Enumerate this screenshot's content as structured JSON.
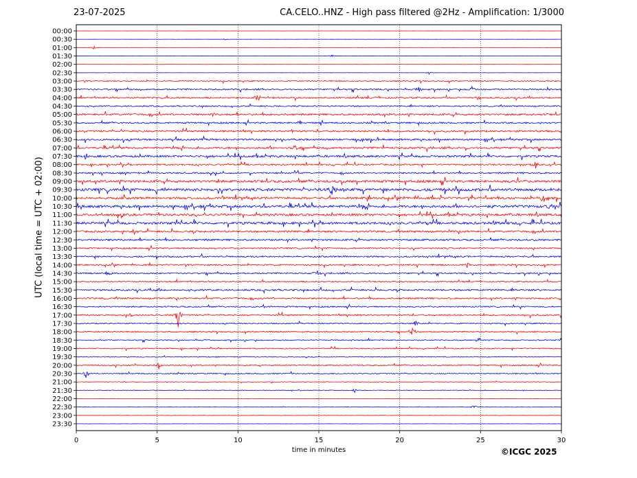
{
  "header": {
    "date": "23-07-2025",
    "title": "CA.CELO..HNZ - High pass filtered @2Hz - Amplification: 1/3000"
  },
  "footer": {
    "copyright": "©ICGC 2025"
  },
  "colors": {
    "trace_a": "#ff0000",
    "trace_b": "#0000ff",
    "grid": "#000000"
  },
  "chart_data": {
    "type": "line",
    "chart_kind": "helicorder",
    "xlabel": "time in minutes",
    "ylabel": "UTC (local time = UTC + 02:00)",
    "xlim": [
      0,
      30
    ],
    "x_ticks": [
      "0",
      "5",
      "10",
      "15",
      "20",
      "25",
      "30"
    ],
    "x_gridlines_at": [
      5,
      10,
      15,
      20,
      25
    ],
    "row_labels": [
      "00:00",
      "00:30",
      "01:00",
      "01:30",
      "02:00",
      "02:30",
      "03:00",
      "03:30",
      "04:00",
      "04:30",
      "05:00",
      "05:30",
      "06:00",
      "06:30",
      "07:00",
      "07:30",
      "08:00",
      "08:30",
      "09:00",
      "09:30",
      "10:00",
      "10:30",
      "11:00",
      "11:30",
      "12:00",
      "12:30",
      "13:00",
      "13:30",
      "14:00",
      "14:30",
      "15:00",
      "15:30",
      "16:00",
      "16:30",
      "17:00",
      "17:30",
      "18:00",
      "18:30",
      "19:00",
      "19:30",
      "20:00",
      "20:30",
      "21:00",
      "21:30",
      "22:00",
      "22:30",
      "23:00",
      "23:30"
    ],
    "row_colors": [
      "red",
      "blue",
      "red",
      "blue",
      "red",
      "blue",
      "red",
      "blue",
      "red",
      "blue",
      "red",
      "blue",
      "red",
      "blue",
      "red",
      "blue",
      "red",
      "blue",
      "red",
      "blue",
      "red",
      "blue",
      "red",
      "blue",
      "red",
      "blue",
      "red",
      "blue",
      "red",
      "blue",
      "red",
      "blue",
      "red",
      "blue",
      "red",
      "blue",
      "red",
      "blue",
      "red",
      "blue",
      "red",
      "blue",
      "red",
      "blue",
      "red",
      "blue",
      "red",
      "blue"
    ],
    "row_noise_level": [
      0.1,
      0.1,
      0.15,
      0.15,
      0.15,
      0.15,
      1.0,
      1.2,
      1.3,
      1.1,
      1.6,
      1.3,
      1.5,
      1.5,
      1.6,
      1.7,
      1.3,
      1.3,
      2.0,
      2.3,
      1.8,
      2.1,
      1.9,
      2.0,
      1.6,
      1.5,
      1.2,
      1.3,
      1.2,
      1.2,
      1.1,
      1.4,
      1.3,
      1.1,
      1.2,
      1.0,
      1.0,
      0.9,
      0.9,
      0.7,
      1.0,
      0.9,
      0.5,
      0.5,
      0.3,
      0.3,
      0.3,
      0.2
    ],
    "events": [
      {
        "row": 1,
        "minute": 9.2,
        "amp": 1.5
      },
      {
        "row": 2,
        "minute": 1.1,
        "amp": 2.5
      },
      {
        "row": 3,
        "minute": 15.8,
        "amp": 3
      },
      {
        "row": 5,
        "minute": 21.8,
        "amp": 3
      },
      {
        "row": 7,
        "minute": 21.2,
        "amp": 6
      },
      {
        "row": 7,
        "minute": 24.5,
        "amp": 7
      },
      {
        "row": 8,
        "minute": 11.2,
        "amp": 9
      },
      {
        "row": 8,
        "minute": 24.8,
        "amp": 4
      },
      {
        "row": 10,
        "minute": 8.5,
        "amp": 4
      },
      {
        "row": 11,
        "minute": 13.8,
        "amp": 6
      },
      {
        "row": 14,
        "minute": 13.5,
        "amp": 5
      },
      {
        "row": 15,
        "minute": 0.6,
        "amp": 5
      },
      {
        "row": 16,
        "minute": 28.4,
        "amp": 6
      },
      {
        "row": 17,
        "minute": 13.5,
        "amp": 5
      },
      {
        "row": 19,
        "minute": 15.8,
        "amp": 12
      },
      {
        "row": 20,
        "minute": 9.1,
        "amp": 5
      },
      {
        "row": 20,
        "minute": 28.8,
        "amp": 10
      },
      {
        "row": 21,
        "minute": 29.2,
        "amp": 8
      },
      {
        "row": 23,
        "minute": 25.9,
        "amp": 6
      },
      {
        "row": 24,
        "minute": 3.6,
        "amp": 5
      },
      {
        "row": 28,
        "minute": 24.2,
        "amp": 5
      },
      {
        "row": 29,
        "minute": 2.0,
        "amp": 7
      },
      {
        "row": 29,
        "minute": 14.8,
        "amp": 9
      },
      {
        "row": 31,
        "minute": 5.0,
        "amp": 5
      },
      {
        "row": 33,
        "minute": 11.6,
        "amp": 6
      },
      {
        "row": 34,
        "minute": 6.3,
        "amp": 22
      },
      {
        "row": 34,
        "minute": 3.4,
        "amp": 5
      },
      {
        "row": 35,
        "minute": 21.0,
        "amp": 6
      },
      {
        "row": 36,
        "minute": 20.8,
        "amp": 7
      },
      {
        "row": 37,
        "minute": 24.9,
        "amp": 5
      },
      {
        "row": 40,
        "minute": 5.1,
        "amp": 7
      },
      {
        "row": 41,
        "minute": 0.6,
        "amp": 9
      },
      {
        "row": 43,
        "minute": 17.2,
        "amp": 4
      },
      {
        "row": 45,
        "minute": 24.6,
        "amp": 5
      }
    ]
  }
}
